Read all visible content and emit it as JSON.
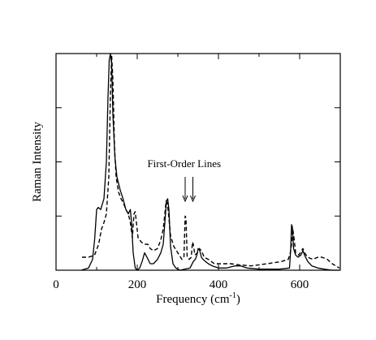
{
  "chart_data": {
    "type": "line",
    "xlabel": "Frequency (cm",
    "xlabel_sup": "-1",
    "xlabel_end": ")",
    "ylabel": "Raman Intensity",
    "xlim": [
      0,
      700
    ],
    "ylim": [
      0,
      1
    ],
    "x_ticks": [
      0,
      200,
      400,
      600
    ],
    "y_ticks_shown_without_labels": [
      0.25,
      0.5,
      0.75
    ],
    "grid": false,
    "legend": "none",
    "annotation": {
      "text": "First-Order Lines",
      "arrows_at_x": [
        318,
        337
      ]
    },
    "series": [
      {
        "style": "solid",
        "points": [
          [
            62,
            0.0
          ],
          [
            80,
            0.01
          ],
          [
            90,
            0.05
          ],
          [
            95,
            0.14
          ],
          [
            100,
            0.28
          ],
          [
            104,
            0.29
          ],
          [
            110,
            0.28
          ],
          [
            118,
            0.33
          ],
          [
            124,
            0.5
          ],
          [
            128,
            0.8
          ],
          [
            131,
            0.97
          ],
          [
            134,
            1.0
          ],
          [
            137,
            0.95
          ],
          [
            140,
            0.72
          ],
          [
            145,
            0.52
          ],
          [
            150,
            0.43
          ],
          [
            158,
            0.37
          ],
          [
            165,
            0.33
          ],
          [
            172,
            0.28
          ],
          [
            178,
            0.26
          ],
          [
            183,
            0.28
          ],
          [
            186,
            0.22
          ],
          [
            190,
            0.08
          ],
          [
            195,
            0.01
          ],
          [
            200,
            0.0
          ],
          [
            206,
            0.01
          ],
          [
            212,
            0.04
          ],
          [
            218,
            0.08
          ],
          [
            224,
            0.06
          ],
          [
            232,
            0.03
          ],
          [
            240,
            0.03
          ],
          [
            250,
            0.05
          ],
          [
            258,
            0.08
          ],
          [
            264,
            0.12
          ],
          [
            268,
            0.22
          ],
          [
            272,
            0.32
          ],
          [
            275,
            0.33
          ],
          [
            278,
            0.28
          ],
          [
            282,
            0.11
          ],
          [
            288,
            0.03
          ],
          [
            295,
            0.01
          ],
          [
            305,
            0.0
          ],
          [
            330,
            0.01
          ],
          [
            338,
            0.04
          ],
          [
            343,
            0.05
          ],
          [
            347,
            0.07
          ],
          [
            350,
            0.1
          ],
          [
            354,
            0.09
          ],
          [
            358,
            0.06
          ],
          [
            362,
            0.05
          ],
          [
            368,
            0.04
          ],
          [
            375,
            0.03
          ],
          [
            385,
            0.02
          ],
          [
            400,
            0.01
          ],
          [
            420,
            0.01
          ],
          [
            440,
            0.02
          ],
          [
            455,
            0.02
          ],
          [
            470,
            0.01
          ],
          [
            500,
            0.005
          ],
          [
            550,
            0.005
          ],
          [
            575,
            0.01
          ],
          [
            578,
            0.1
          ],
          [
            580,
            0.21
          ],
          [
            582,
            0.2
          ],
          [
            585,
            0.1
          ],
          [
            590,
            0.07
          ],
          [
            596,
            0.06
          ],
          [
            603,
            0.07
          ],
          [
            608,
            0.09
          ],
          [
            612,
            0.07
          ],
          [
            620,
            0.04
          ],
          [
            630,
            0.02
          ],
          [
            645,
            0.01
          ],
          [
            660,
            0.005
          ],
          [
            680,
            0.0
          ],
          [
            698,
            0.0
          ]
        ]
      },
      {
        "style": "dashed",
        "points": [
          [
            64,
            0.06
          ],
          [
            80,
            0.06
          ],
          [
            95,
            0.07
          ],
          [
            105,
            0.12
          ],
          [
            112,
            0.19
          ],
          [
            118,
            0.22
          ],
          [
            124,
            0.26
          ],
          [
            130,
            0.43
          ],
          [
            134,
            0.82
          ],
          [
            137,
            0.99
          ],
          [
            140,
            0.88
          ],
          [
            144,
            0.57
          ],
          [
            148,
            0.43
          ],
          [
            154,
            0.36
          ],
          [
            160,
            0.33
          ],
          [
            166,
            0.31
          ],
          [
            172,
            0.28
          ],
          [
            178,
            0.26
          ],
          [
            183,
            0.22
          ],
          [
            188,
            0.15
          ],
          [
            192,
            0.26
          ],
          [
            195,
            0.27
          ],
          [
            198,
            0.22
          ],
          [
            202,
            0.15
          ],
          [
            210,
            0.13
          ],
          [
            218,
            0.12
          ],
          [
            226,
            0.12
          ],
          [
            232,
            0.1
          ],
          [
            240,
            0.09
          ],
          [
            250,
            0.1
          ],
          [
            258,
            0.14
          ],
          [
            264,
            0.19
          ],
          [
            268,
            0.26
          ],
          [
            271,
            0.32
          ],
          [
            274,
            0.31
          ],
          [
            277,
            0.26
          ],
          [
            282,
            0.16
          ],
          [
            290,
            0.11
          ],
          [
            300,
            0.08
          ],
          [
            310,
            0.05
          ],
          [
            315,
            0.06
          ],
          [
            318,
            0.25
          ],
          [
            320,
            0.24
          ],
          [
            323,
            0.06
          ],
          [
            328,
            0.05
          ],
          [
            333,
            0.06
          ],
          [
            336,
            0.13
          ],
          [
            338,
            0.12
          ],
          [
            342,
            0.07
          ],
          [
            348,
            0.08
          ],
          [
            353,
            0.1
          ],
          [
            358,
            0.09
          ],
          [
            365,
            0.06
          ],
          [
            375,
            0.05
          ],
          [
            390,
            0.03
          ],
          [
            410,
            0.03
          ],
          [
            430,
            0.03
          ],
          [
            450,
            0.025
          ],
          [
            480,
            0.02
          ],
          [
            520,
            0.03
          ],
          [
            555,
            0.04
          ],
          [
            572,
            0.05
          ],
          [
            577,
            0.08
          ],
          [
            580,
            0.12
          ],
          [
            583,
            0.19
          ],
          [
            586,
            0.15
          ],
          [
            590,
            0.08
          ],
          [
            598,
            0.07
          ],
          [
            608,
            0.1
          ],
          [
            612,
            0.08
          ],
          [
            620,
            0.06
          ],
          [
            632,
            0.05
          ],
          [
            645,
            0.06
          ],
          [
            655,
            0.06
          ],
          [
            668,
            0.05
          ],
          [
            680,
            0.03
          ],
          [
            698,
            0.01
          ]
        ]
      }
    ]
  }
}
